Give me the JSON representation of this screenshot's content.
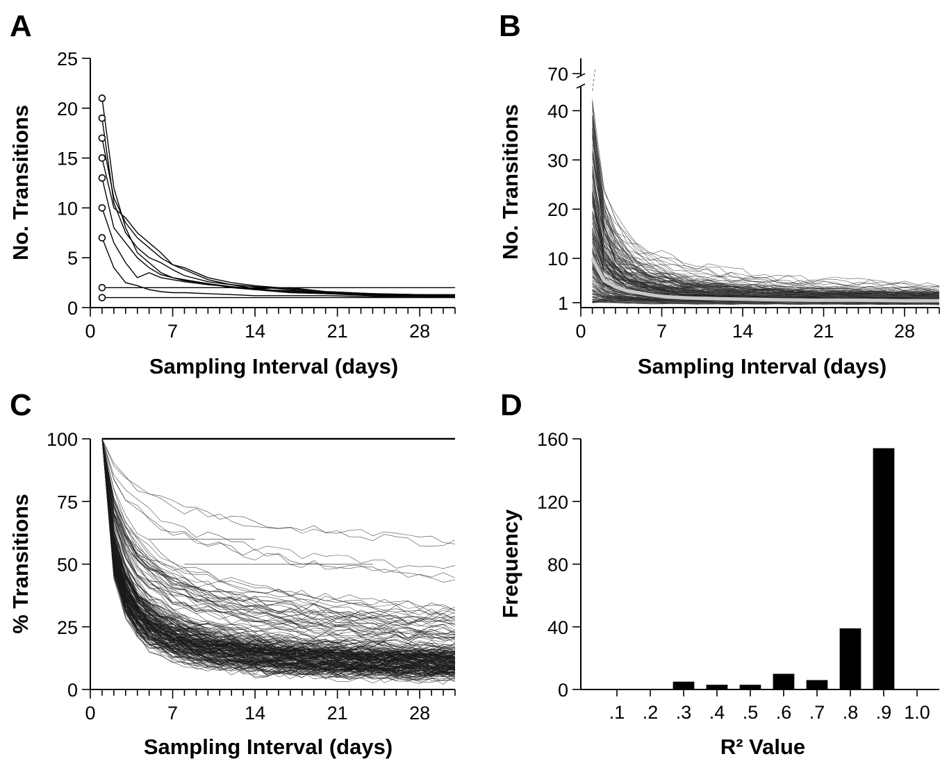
{
  "chart_data": [
    {
      "panel": "A",
      "type": "line",
      "xlabel": "Sampling Interval (days)",
      "ylabel": "No. Transitions",
      "xlim": [
        0,
        31
      ],
      "ylim": [
        0,
        25
      ],
      "xticks": [
        0,
        7,
        14,
        21,
        28
      ],
      "yticks": [
        0,
        5,
        10,
        15,
        20,
        25
      ],
      "markers": "open-circle-at-first-point",
      "series": [
        {
          "x": [
            1,
            2,
            3,
            4,
            5,
            6,
            7,
            8,
            10,
            12,
            14,
            17,
            20,
            24,
            28,
            31
          ],
          "y": [
            21,
            12,
            8,
            5.5,
            4.5,
            3.5,
            3,
            2.7,
            2.4,
            2,
            1.8,
            1.5,
            1.4,
            1.2,
            1.2,
            1.1
          ]
        },
        {
          "x": [
            1,
            2,
            3,
            4,
            5,
            6,
            7,
            8,
            10,
            12,
            14,
            17,
            20,
            24,
            28,
            31
          ],
          "y": [
            19,
            10.5,
            7.5,
            6,
            5,
            4.5,
            3.8,
            3.2,
            2.6,
            2.3,
            1.9,
            2,
            1.6,
            1.4,
            1.3,
            1.3
          ]
        },
        {
          "x": [
            1,
            2,
            3,
            4,
            5,
            6,
            7,
            8,
            10,
            12,
            14,
            17,
            20,
            24,
            28,
            31
          ],
          "y": [
            17,
            11,
            8.5,
            7,
            6,
            5,
            4.3,
            3.8,
            2.8,
            2.3,
            2.1,
            1.8,
            1.5,
            1.3,
            1.2,
            1.2
          ]
        },
        {
          "x": [
            1,
            2,
            3,
            4,
            5,
            6,
            7,
            8,
            10,
            12,
            14,
            17,
            20,
            24,
            28,
            31
          ],
          "y": [
            15,
            10,
            9,
            7.5,
            6.5,
            5.5,
            4.3,
            4,
            3,
            2.5,
            2.2,
            1.9,
            1.6,
            1.4,
            1.3,
            1.2
          ]
        },
        {
          "x": [
            1,
            2,
            3,
            4,
            5,
            6,
            7,
            8,
            10,
            12,
            14,
            17,
            20,
            24,
            28,
            31
          ],
          "y": [
            13,
            8,
            6.5,
            5,
            4,
            3.3,
            3,
            2.8,
            2.4,
            2.1,
            1.9,
            1.6,
            1.5,
            1.3,
            1.2,
            1.2
          ]
        },
        {
          "x": [
            1,
            2,
            3,
            4,
            5,
            6,
            7,
            8,
            10,
            12,
            14,
            17,
            20,
            24,
            28,
            31
          ],
          "y": [
            10,
            6.5,
            4.5,
            3,
            3.5,
            3,
            2.8,
            2.6,
            2.3,
            2.1,
            1.8,
            1.7,
            1.4,
            1.3,
            1.2,
            1.1
          ]
        },
        {
          "x": [
            1,
            2,
            3,
            4,
            5,
            6,
            7,
            8,
            10,
            12,
            14,
            17,
            20,
            24,
            28,
            31
          ],
          "y": [
            7,
            4,
            2.5,
            2.2,
            1.8,
            1.6,
            1.5,
            1.5,
            1.4,
            1.3,
            1.2,
            1.2,
            1.2,
            1.1,
            1.1,
            1
          ]
        },
        {
          "x": [
            1,
            31
          ],
          "y": [
            2,
            2
          ]
        },
        {
          "x": [
            1,
            31
          ],
          "y": [
            1,
            1
          ]
        }
      ]
    },
    {
      "panel": "B",
      "type": "line",
      "xlabel": "Sampling Interval (days)",
      "ylabel": "No. Transitions",
      "xlim": [
        0,
        31
      ],
      "ylim": [
        0,
        45
      ],
      "axis_break": {
        "from": 45,
        "to": 70
      },
      "xticks": [
        0,
        7,
        14,
        21,
        28
      ],
      "yticks": [
        1,
        10,
        20,
        30,
        40,
        70
      ],
      "series_count_approx": 220,
      "mean_curve": {
        "color": "#c8c8c8",
        "x": [
          1,
          2,
          3,
          4,
          5,
          6,
          7,
          8,
          10,
          12,
          14,
          17,
          20,
          24,
          28,
          31
        ],
        "y": [
          10,
          5.5,
          4.2,
          3.4,
          3,
          2.6,
          2.3,
          2.1,
          1.9,
          1.8,
          1.7,
          1.6,
          1.5,
          1.5,
          1.4,
          1.4
        ]
      },
      "dashed_gap_curve_top_y": 70
    },
    {
      "panel": "C",
      "type": "line",
      "xlabel": "Sampling Interval (days)",
      "ylabel": "% Transitions",
      "xlim": [
        0,
        31
      ],
      "ylim": [
        0,
        100
      ],
      "xticks": [
        0,
        7,
        14,
        21,
        28
      ],
      "yticks": [
        0,
        25,
        50,
        75,
        100
      ],
      "series_count_approx": 220,
      "start_value": 100
    },
    {
      "panel": "D",
      "type": "bar",
      "xlabel": "R² Value",
      "ylabel": "Frequency",
      "categories": [
        ".1",
        ".2",
        ".3",
        ".4",
        ".5",
        ".6",
        ".7",
        ".8",
        ".9",
        "1.0"
      ],
      "values": [
        0,
        0,
        5,
        3,
        3,
        10,
        6,
        39,
        154,
        0
      ],
      "ylim": [
        0,
        160
      ],
      "yticks": [
        0,
        40,
        80,
        120,
        160
      ]
    }
  ],
  "panels": {
    "a": {
      "letter": "A",
      "xlabel": "Sampling Interval (days)",
      "ylabel": "No. Transitions"
    },
    "b": {
      "letter": "B",
      "xlabel": "Sampling Interval (days)",
      "ylabel": "No. Transitions"
    },
    "c": {
      "letter": "C",
      "xlabel": "Sampling Interval (days)",
      "ylabel": "% Transitions"
    },
    "d": {
      "letter": "D",
      "xlabel": "R² Value",
      "ylabel": "Frequency"
    }
  }
}
